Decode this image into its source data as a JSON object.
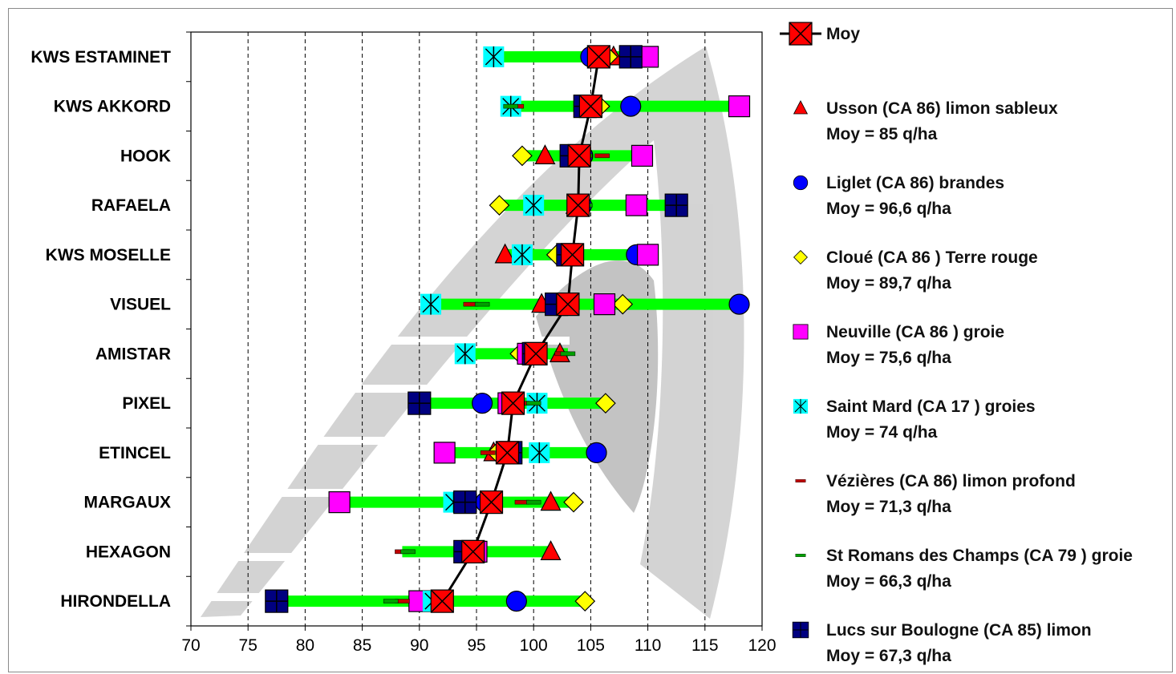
{
  "chart_data": {
    "type": "scatter",
    "orientation": "horizontal",
    "xlim": [
      70,
      120
    ],
    "x_ticks": [
      "70",
      "75",
      "80",
      "85",
      "90",
      "95",
      "100",
      "105",
      "110",
      "115",
      "120"
    ],
    "grid": "vertical-dashed",
    "legend_position": "right",
    "range_bar_color": "#00ff00",
    "mean_line_color": "#000000",
    "categories": [
      "KWS ESTAMINET",
      "KWS AKKORD",
      "HOOK",
      "RAFAELA",
      "KWS MOSELLE",
      "VISUEL",
      "AMISTAR",
      "PIXEL",
      "ETINCEL",
      "MARGAUX",
      "HEXAGON",
      "HIRONDELLA"
    ],
    "moy": {
      "label": "Moy",
      "marker": "square-x",
      "color": "#ff0000",
      "values": [
        105.7,
        105.0,
        104.0,
        103.9,
        103.4,
        103.0,
        100.2,
        98.2,
        97.7,
        96.3,
        94.7,
        92.0
      ]
    },
    "series": [
      {
        "name": "Usson (CA 86) limon sableux",
        "moy_label": "Moy = 85 q/ha",
        "marker": "triangle",
        "color": "#ff0000",
        "values": [
          107.0,
          104.8,
          101.0,
          103.7,
          97.5,
          100.7,
          102.3,
          98.0,
          96.5,
          101.5,
          101.5,
          91.5
        ]
      },
      {
        "name": "Liglet (CA 86)  brandes",
        "moy_label": "Moy  = 96,6 q/ha",
        "marker": "circle",
        "color": "#0000ff",
        "values": [
          105.0,
          108.5,
          104.3,
          104.2,
          109.0,
          118.0,
          100.0,
          95.5,
          105.5,
          95.8,
          94.5,
          98.5
        ]
      },
      {
        "name": "Cloué (CA 86 ) Terre rouge",
        "moy_label": "Moy = 89,7 q/ha",
        "marker": "diamond",
        "color": "#ffff00",
        "values": [
          106.5,
          105.8,
          99.0,
          97.0,
          102.0,
          107.8,
          98.8,
          106.3,
          96.8,
          103.5,
          94.8,
          104.5
        ]
      },
      {
        "name": "Neuville (CA 86 ) groie",
        "moy_label": "Moy =  75,6 q/ha",
        "marker": "square",
        "color": "#ff00ff",
        "values": [
          110.0,
          118.0,
          109.5,
          109.0,
          110.0,
          106.2,
          99.5,
          97.8,
          92.2,
          83.0,
          95.0,
          90.0
        ]
      },
      {
        "name": "Saint Mard (CA 17 ) groies",
        "moy_label": "Moy = 74 q/ha",
        "marker": "asterisk",
        "color": "#00ffff",
        "values": [
          96.5,
          98.0,
          104.0,
          100.0,
          99.0,
          91.0,
          94.0,
          100.3,
          100.5,
          93.0,
          94.5,
          91.2
        ]
      },
      {
        "name": "Vézières (CA 86) limon profond",
        "moy_label": "Moy = 71,3 q/ha",
        "marker": "dash",
        "color": "#c00000",
        "values": [
          105.5,
          98.5,
          106.0,
          104.0,
          103.5,
          94.5,
          102.5,
          99.0,
          96.0,
          99.0,
          88.5,
          88.5
        ]
      },
      {
        "name": "St Romans des Champs (CA 79 ) groie",
        "moy_label": "Moy = 66,3 q/ha",
        "marker": "dash",
        "color": "#00a000",
        "values": [
          106.0,
          98.0,
          104.5,
          104.5,
          103.0,
          95.5,
          103.0,
          100.0,
          97.5,
          100.0,
          89.0,
          87.5
        ]
      },
      {
        "name": "Lucs sur Boulogne (CA 85)  limon",
        "moy_label": "Moy  = 67,3 q/ha",
        "marker": "square-plus",
        "color": "#000080",
        "values": [
          108.5,
          104.5,
          103.3,
          112.5,
          103.0,
          102.0,
          100.0,
          90.0,
          98.0,
          94.0,
          94.0,
          77.5
        ]
      }
    ]
  }
}
